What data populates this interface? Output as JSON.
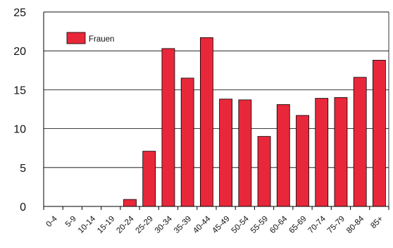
{
  "chart_data": {
    "type": "bar",
    "categories": [
      "0-4",
      "5-9",
      "10-14",
      "15-19",
      "20-24",
      "25-29",
      "30-34",
      "35-39",
      "40-44",
      "45-49",
      "50-54",
      "55-59",
      "60-64",
      "65-69",
      "70-74",
      "75-79",
      "80-84",
      "85+"
    ],
    "series": [
      {
        "name": "Frauen",
        "values": [
          0,
          0,
          0,
          0,
          0.9,
          7.1,
          20.3,
          16.5,
          21.7,
          13.8,
          13.7,
          9.0,
          13.1,
          11.7,
          13.9,
          14.0,
          16.6,
          18.8
        ]
      }
    ],
    "ylim": [
      0,
      25
    ],
    "yticks": [
      0,
      5,
      10,
      15,
      20,
      25
    ],
    "grid": true,
    "legend_position": "top-left",
    "colors": {
      "bar": "#e8283a",
      "bar_stroke": "#000000",
      "grid": "#000000"
    }
  }
}
